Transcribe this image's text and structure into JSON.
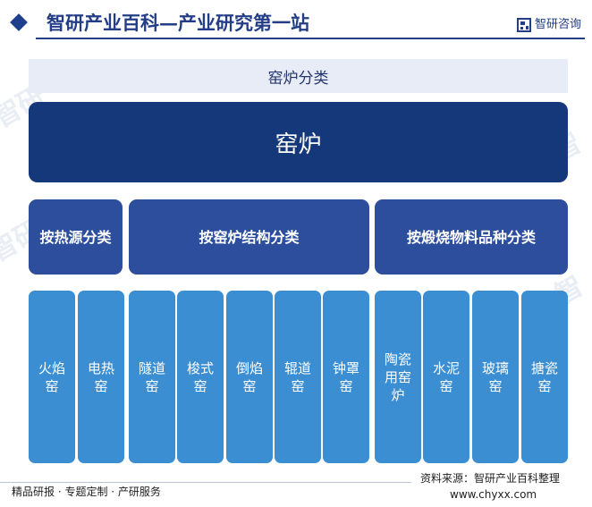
{
  "header": {
    "title": "智研产业百科—产业研究第一站",
    "logo_text": "智研咨询"
  },
  "diagram": {
    "category_header": "窑炉分类",
    "root": "窑炉",
    "groups": [
      {
        "label": "按热源分类",
        "items": [
          "火焰窑",
          "电热窑"
        ]
      },
      {
        "label": "按窑炉结构分类",
        "items": [
          "隧道窑",
          "梭式窑",
          "倒焰窑",
          "辊道窑",
          "钟罩窑"
        ]
      },
      {
        "label": "按煅烧物料品种分类",
        "items": [
          "陶瓷用窑炉",
          "水泥窑",
          "玻璃窑",
          "搪瓷窑"
        ]
      }
    ]
  },
  "footer": {
    "left": "精品研报 · 专题定制 · 产研服务",
    "source": "资料来源：智研产业百科整理",
    "url": "www.chyxx.com"
  },
  "colors": {
    "brand": "#233e86",
    "root_box": "#15387a",
    "group_box": "#2c4e9c",
    "leaf_box": "#3c8ed2",
    "category_header_bg": "#e7ecf6"
  }
}
